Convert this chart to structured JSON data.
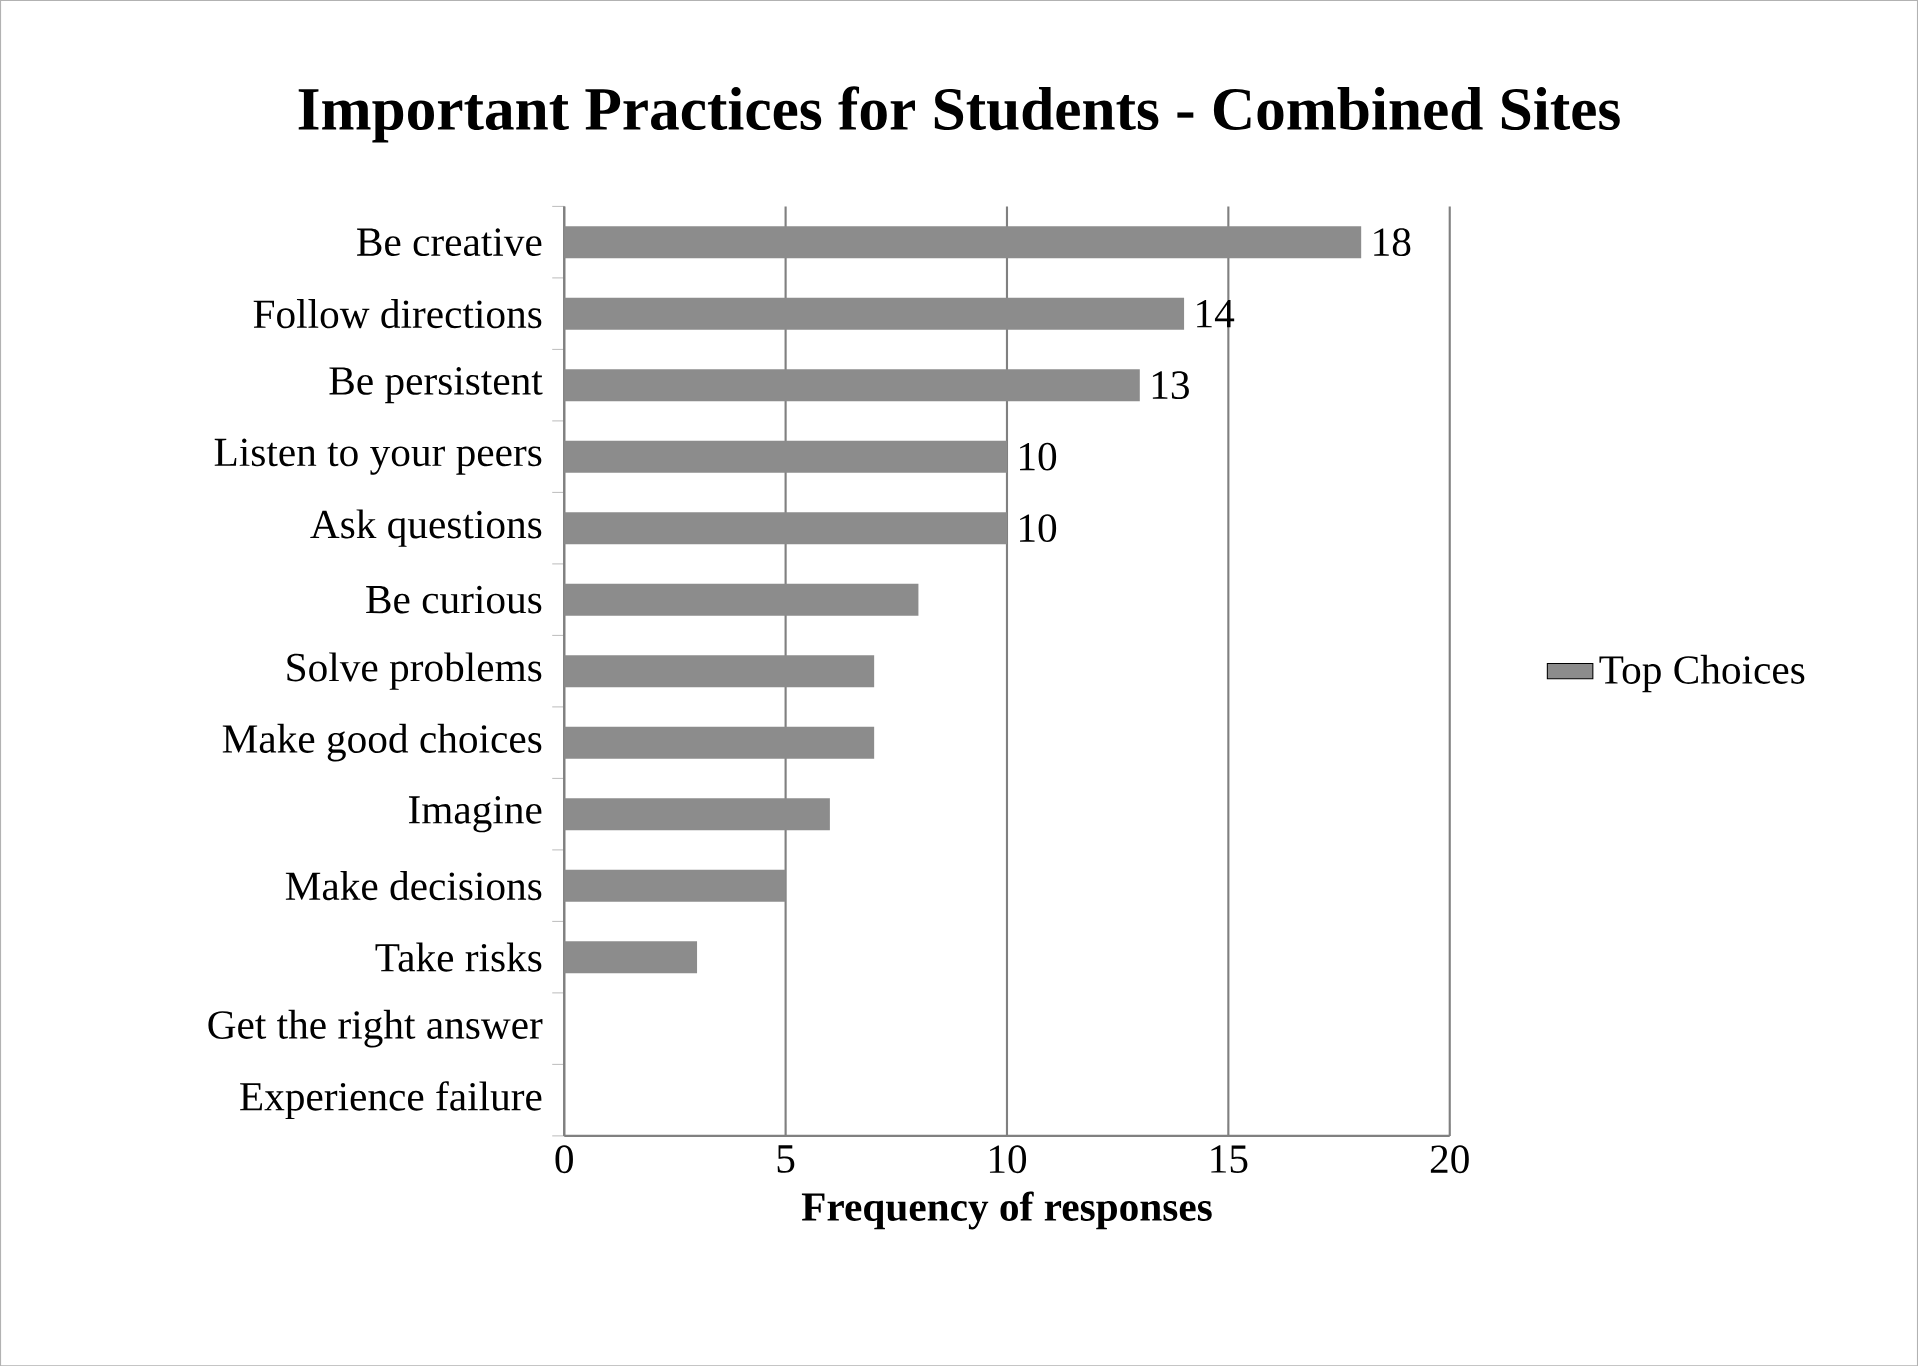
{
  "chart_data": {
    "type": "bar",
    "orientation": "horizontal",
    "title": "Important Practices for Students - Combined Sites",
    "xlabel": "Frequency of responses",
    "categories": [
      "Be creative",
      "Follow directions",
      "Be persistent",
      "Listen to your peers",
      "Ask questions",
      "Be curious",
      "Solve problems",
      "Make good choices",
      "Imagine",
      "Make decisions",
      "Take risks",
      "Get the right answer",
      "Experience failure"
    ],
    "series": [
      {
        "name": "Top Choices",
        "color": "#8c8c8c",
        "values": [
          18,
          14,
          13,
          10,
          10,
          8,
          7,
          7,
          6,
          5,
          3,
          0,
          0
        ],
        "value_labels": [
          "18",
          "14",
          "13",
          "10",
          "10",
          null,
          null,
          null,
          null,
          null,
          null,
          null,
          null
        ]
      }
    ],
    "xlim": [
      0,
      20
    ],
    "xticks": [
      0,
      5,
      10,
      15,
      20
    ],
    "grid": "x",
    "legend": "right"
  }
}
